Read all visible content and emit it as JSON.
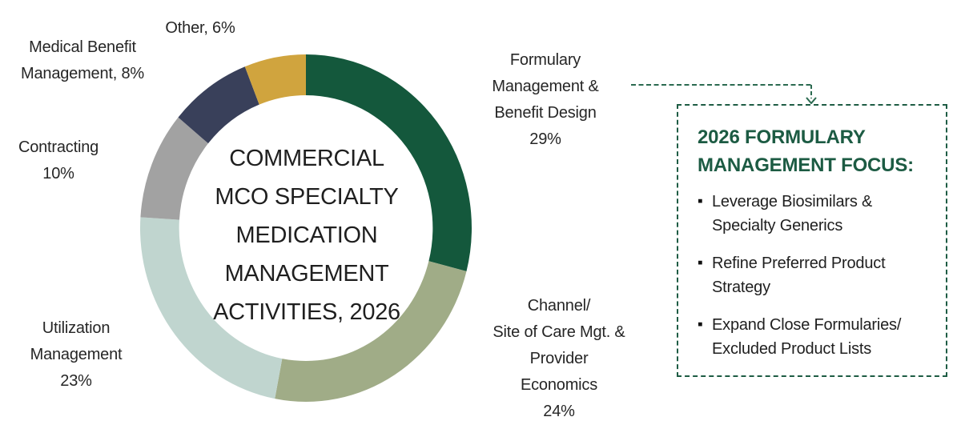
{
  "chart_data": {
    "type": "pie",
    "subtype": "donut",
    "title": "COMMERCIAL\nMCO SPECIALTY\nMEDICATION\nMANAGEMENT\nACTIVITIES, 2026",
    "unit": "%",
    "start_angle_deg": 0,
    "direction": "clockwise",
    "inner_radius_ratio": 0.765,
    "series": [
      {
        "name": "Formulary Management & Benefit Design",
        "value": 29,
        "color": "#14583C"
      },
      {
        "name": "Channel/Site of Care Mgt. & Provider Economics",
        "value": 24,
        "color": "#A0AC87"
      },
      {
        "name": "Utilization Management",
        "value": 23,
        "color": "#C0D5CF"
      },
      {
        "name": "Contracting",
        "value": 10,
        "color": "#A2A2A2"
      },
      {
        "name": "Medical Benefit Management",
        "value": 8,
        "color": "#39405A"
      },
      {
        "name": "Other",
        "value": 6,
        "color": "#D0A43E"
      }
    ]
  },
  "slice_labels": {
    "formulary": "Formulary\nManagement &\nBenefit Design\n29%",
    "channel": "Channel/\nSite of Care Mgt. &\nProvider\nEconomics\n24%",
    "utilization": "Utilization\nManagement\n23%",
    "contracting": "Contracting\n10%",
    "medical": "Medical Benefit\nManagement, 8%",
    "other": "Other, 6%"
  },
  "callout": {
    "title": "2026 FORMULARY\nMANAGEMENT FOCUS:",
    "bullet_char": "▪",
    "bullets": [
      "Leverage Biosimilars &\nSpecialty Generics",
      "Refine Preferred Product\nStrategy",
      "Expand Close Formularies/\nExcluded Product Lists"
    ],
    "border_color": "#1E5C44",
    "title_color": "#1C5B43",
    "arrow_color": "#2B6A50"
  }
}
